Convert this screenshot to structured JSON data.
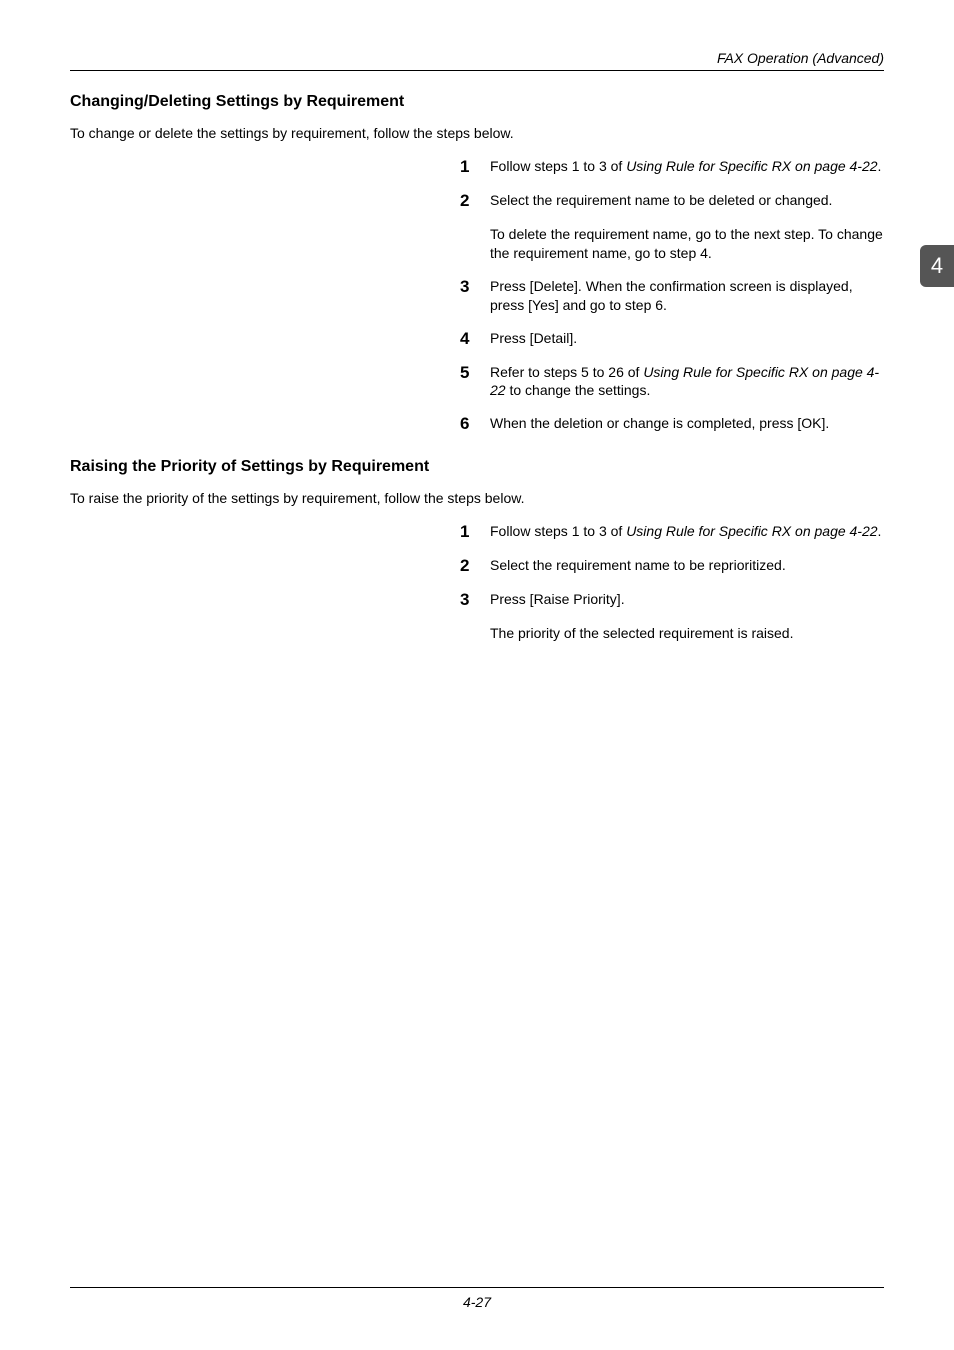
{
  "header": {
    "title": "FAX Operation (Advanced)"
  },
  "sideTab": {
    "label": "4"
  },
  "section1": {
    "title": "Changing/Deleting Settings by Requirement",
    "intro": "To change or delete the settings by requirement, follow the steps below.",
    "steps": {
      "s1_pre": "Follow steps 1 to 3 of ",
      "s1_ital": "Using Rule for Specific RX on page 4-22",
      "s1_post": ".",
      "s2": "Select the requirement name to be deleted or changed.",
      "s2_sub": "To delete the requirement name, go to the next step. To change the requirement name, go to step 4.",
      "s3": "Press [Delete]. When the confirmation screen is displayed, press [Yes] and go to step 6.",
      "s4": "Press [Detail].",
      "s5_pre": "Refer to steps 5 to 26 of ",
      "s5_ital": "Using Rule for Specific RX on page 4-22",
      "s5_post": " to change the settings.",
      "s6": "When the deletion or change is completed, press [OK]."
    }
  },
  "section2": {
    "title": "Raising the Priority of Settings by Requirement",
    "intro": "To raise the priority of the settings by requirement, follow the steps below.",
    "steps": {
      "s1_pre": "Follow steps 1 to 3 of ",
      "s1_ital": "Using Rule for Specific RX on page 4-22",
      "s1_post": ".",
      "s2": "Select the requirement name to be reprioritized.",
      "s3": "Press [Raise Priority].",
      "s3_sub": "The priority of the selected requirement is raised."
    }
  },
  "footer": {
    "pageNum": "4-27"
  },
  "nums": {
    "n1": "1",
    "n2": "2",
    "n3": "3",
    "n4": "4",
    "n5": "5",
    "n6": "6"
  }
}
